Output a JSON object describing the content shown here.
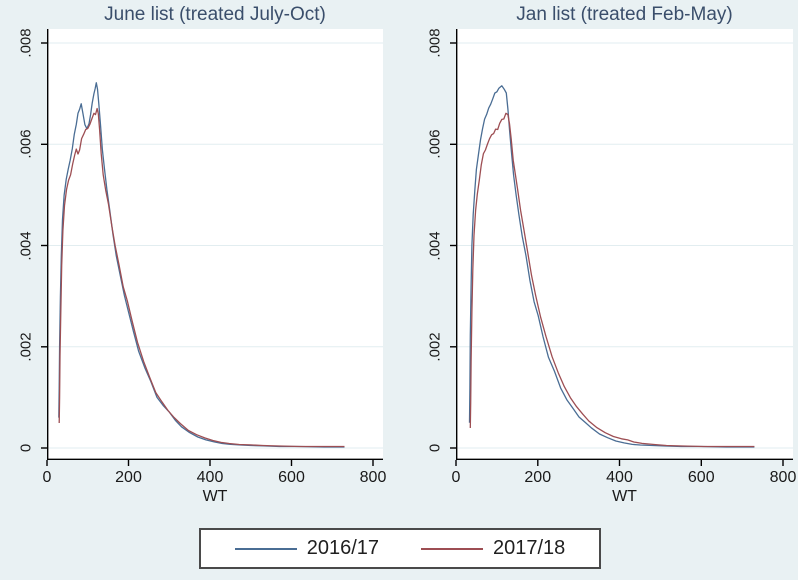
{
  "figure": {
    "background_color": "#e9f1f3",
    "plot_background_color": "#ffffff",
    "gridline_color": "#e2edf0",
    "axis_color": "#000000",
    "title_color": "#3a4e6b",
    "tick_text_color": "#1a1a1a"
  },
  "legend": {
    "entries": [
      {
        "label": "2016/17",
        "color": "#4a6d94"
      },
      {
        "label": "2017/18",
        "color": "#9d4e53"
      }
    ]
  },
  "chart_data": [
    {
      "type": "line",
      "title": "June list (treated July-Oct)",
      "xlabel": "WT",
      "ylabel": "",
      "xlim": [
        0,
        800
      ],
      "ylim": [
        0,
        0.008
      ],
      "xticks": [
        0,
        200,
        400,
        600,
        800
      ],
      "xtick_labels": [
        "0",
        "200",
        "400",
        "600",
        "800"
      ],
      "yticks": [
        0,
        0.002,
        0.004,
        0.006,
        0.008
      ],
      "ytick_labels": [
        "0",
        ".002",
        ".004",
        ".006",
        ".008"
      ],
      "grid": "horizontal",
      "legend_position": "bottom-outside",
      "series": [
        {
          "name": "2016/17",
          "color": "#4a6d94",
          "points": [
            [
              29,
              0.0006
            ],
            [
              30,
              0.0012
            ],
            [
              31,
              0.002
            ],
            [
              33,
              0.003
            ],
            [
              35,
              0.0038
            ],
            [
              38,
              0.0045
            ],
            [
              42,
              0.005
            ],
            [
              47,
              0.0053
            ],
            [
              52,
              0.0055
            ],
            [
              57,
              0.0057
            ],
            [
              62,
              0.0059
            ],
            [
              67,
              0.0062
            ],
            [
              72,
              0.0064
            ],
            [
              76,
              0.0066
            ],
            [
              80,
              0.0067
            ],
            [
              84,
              0.0068
            ],
            [
              88,
              0.0066
            ],
            [
              93,
              0.0064
            ],
            [
              98,
              0.0063
            ],
            [
              103,
              0.0064
            ],
            [
              107,
              0.0066
            ],
            [
              111,
              0.0068
            ],
            [
              115,
              0.007
            ],
            [
              118,
              0.0071
            ],
            [
              121,
              0.0072
            ],
            [
              124,
              0.0071
            ],
            [
              127,
              0.0068
            ],
            [
              131,
              0.0064
            ],
            [
              136,
              0.0059
            ],
            [
              141,
              0.0055
            ],
            [
              147,
              0.0051
            ],
            [
              154,
              0.0047
            ],
            [
              162,
              0.0042
            ],
            [
              170,
              0.0038
            ],
            [
              180,
              0.0034
            ],
            [
              190,
              0.003
            ],
            [
              200,
              0.0027
            ],
            [
              212,
              0.0023
            ],
            [
              225,
              0.0019
            ],
            [
              240,
              0.0016
            ],
            [
              255,
              0.0013
            ],
            [
              270,
              0.001
            ],
            [
              285,
              0.00085
            ],
            [
              300,
              0.0007
            ],
            [
              315,
              0.00055
            ],
            [
              330,
              0.00042
            ],
            [
              350,
              0.0003
            ],
            [
              370,
              0.00022
            ],
            [
              390,
              0.00016
            ],
            [
              410,
              0.00012
            ],
            [
              430,
              9e-05
            ],
            [
              450,
              7e-05
            ],
            [
              475,
              6e-05
            ],
            [
              500,
              5e-05
            ],
            [
              530,
              4e-05
            ],
            [
              570,
              3e-05
            ],
            [
              620,
              3e-05
            ],
            [
              680,
              2e-05
            ],
            [
              730,
              2e-05
            ]
          ]
        },
        {
          "name": "2017/18",
          "color": "#9d4e53",
          "points": [
            [
              30,
              0.0005
            ],
            [
              31,
              0.001
            ],
            [
              32,
              0.0018
            ],
            [
              34,
              0.0028
            ],
            [
              36,
              0.0036
            ],
            [
              39,
              0.0043
            ],
            [
              43,
              0.0048
            ],
            [
              48,
              0.0051
            ],
            [
              53,
              0.0053
            ],
            [
              58,
              0.0054
            ],
            [
              63,
              0.0056
            ],
            [
              68,
              0.0058
            ],
            [
              72,
              0.0059
            ],
            [
              76,
              0.0058
            ],
            [
              80,
              0.0059
            ],
            [
              85,
              0.0061
            ],
            [
              90,
              0.0062
            ],
            [
              95,
              0.0063
            ],
            [
              100,
              0.0063
            ],
            [
              105,
              0.0064
            ],
            [
              110,
              0.0065
            ],
            [
              115,
              0.0066
            ],
            [
              119,
              0.0066
            ],
            [
              123,
              0.0067
            ],
            [
              126,
              0.0066
            ],
            [
              129,
              0.0063
            ],
            [
              133,
              0.0058
            ],
            [
              138,
              0.0054
            ],
            [
              144,
              0.0051
            ],
            [
              151,
              0.0048
            ],
            [
              159,
              0.0044
            ],
            [
              167,
              0.004
            ],
            [
              177,
              0.0036
            ],
            [
              187,
              0.0032
            ],
            [
              197,
              0.0029
            ],
            [
              209,
              0.0025
            ],
            [
              222,
              0.0021
            ],
            [
              237,
              0.0017
            ],
            [
              252,
              0.0014
            ],
            [
              267,
              0.0011
            ],
            [
              282,
              0.0009
            ],
            [
              297,
              0.00075
            ],
            [
              312,
              0.0006
            ],
            [
              327,
              0.00048
            ],
            [
              347,
              0.00035
            ],
            [
              367,
              0.00026
            ],
            [
              387,
              0.0002
            ],
            [
              407,
              0.00015
            ],
            [
              427,
              0.00011
            ],
            [
              447,
              9e-05
            ],
            [
              472,
              7e-05
            ],
            [
              500,
              6e-05
            ],
            [
              530,
              5e-05
            ],
            [
              570,
              4e-05
            ],
            [
              620,
              3e-05
            ],
            [
              680,
              3e-05
            ],
            [
              730,
              3e-05
            ]
          ]
        }
      ]
    },
    {
      "type": "line",
      "title": "Jan list (treated Feb-May)",
      "xlabel": "WT",
      "ylabel": "",
      "xlim": [
        0,
        800
      ],
      "ylim": [
        0,
        0.008
      ],
      "xticks": [
        0,
        200,
        400,
        600,
        800
      ],
      "xtick_labels": [
        "0",
        "200",
        "400",
        "600",
        "800"
      ],
      "yticks": [
        0,
        0.002,
        0.004,
        0.006,
        0.008
      ],
      "ytick_labels": [
        "0",
        ".002",
        ".004",
        ".006",
        ".008"
      ],
      "grid": "horizontal",
      "legend_position": "bottom-outside",
      "series": [
        {
          "name": "2016/17",
          "color": "#4a6d94",
          "points": [
            [
              33,
              0.0005
            ],
            [
              34,
              0.0012
            ],
            [
              35,
              0.0022
            ],
            [
              37,
              0.0032
            ],
            [
              39,
              0.004
            ],
            [
              42,
              0.0046
            ],
            [
              46,
              0.0051
            ],
            [
              50,
              0.0055
            ],
            [
              55,
              0.0058
            ],
            [
              60,
              0.0061
            ],
            [
              65,
              0.0063
            ],
            [
              70,
              0.0065
            ],
            [
              75,
              0.0066
            ],
            [
              80,
              0.0067
            ],
            [
              85,
              0.0068
            ],
            [
              90,
              0.0069
            ],
            [
              95,
              0.007
            ],
            [
              100,
              0.00705
            ],
            [
              105,
              0.0071
            ],
            [
              112,
              0.00715
            ],
            [
              118,
              0.0071
            ],
            [
              123,
              0.007
            ],
            [
              127,
              0.0067
            ],
            [
              131,
              0.0063
            ],
            [
              136,
              0.0058
            ],
            [
              141,
              0.0054
            ],
            [
              147,
              0.005
            ],
            [
              154,
              0.0046
            ],
            [
              162,
              0.0042
            ],
            [
              171,
              0.0038
            ],
            [
              181,
              0.0033
            ],
            [
              191,
              0.0029
            ],
            [
              201,
              0.0026
            ],
            [
              213,
              0.0022
            ],
            [
              226,
              0.0018
            ],
            [
              241,
              0.0015
            ],
            [
              256,
              0.0012
            ],
            [
              271,
              0.00095
            ],
            [
              286,
              0.00078
            ],
            [
              301,
              0.00062
            ],
            [
              316,
              0.0005
            ],
            [
              331,
              0.0004
            ],
            [
              351,
              0.00028
            ],
            [
              371,
              0.0002
            ],
            [
              391,
              0.00014
            ],
            [
              411,
              0.0001
            ],
            [
              431,
              7e-05
            ],
            [
              451,
              6e-05
            ],
            [
              481,
              5e-05
            ],
            [
              511,
              4e-05
            ],
            [
              551,
              3e-05
            ],
            [
              601,
              3e-05
            ],
            [
              661,
              2e-05
            ],
            [
              730,
              2e-05
            ]
          ]
        },
        {
          "name": "2017/18",
          "color": "#9d4e53",
          "points": [
            [
              35,
              0.0004
            ],
            [
              36,
              0.0009
            ],
            [
              37,
              0.0017
            ],
            [
              39,
              0.0027
            ],
            [
              41,
              0.0035
            ],
            [
              44,
              0.0042
            ],
            [
              48,
              0.0047
            ],
            [
              52,
              0.005
            ],
            [
              57,
              0.0053
            ],
            [
              62,
              0.0056
            ],
            [
              67,
              0.0058
            ],
            [
              72,
              0.0059
            ],
            [
              77,
              0.006
            ],
            [
              82,
              0.0061
            ],
            [
              87,
              0.0062
            ],
            [
              92,
              0.0062
            ],
            [
              97,
              0.0063
            ],
            [
              102,
              0.0063
            ],
            [
              107,
              0.0064
            ],
            [
              112,
              0.0065
            ],
            [
              117,
              0.0065
            ],
            [
              122,
              0.0066
            ],
            [
              127,
              0.0066
            ],
            [
              131,
              0.0064
            ],
            [
              135,
              0.0061
            ],
            [
              140,
              0.0057
            ],
            [
              145,
              0.0054
            ],
            [
              151,
              0.0051
            ],
            [
              158,
              0.0047
            ],
            [
              166,
              0.0043
            ],
            [
              175,
              0.0039
            ],
            [
              185,
              0.0034
            ],
            [
              195,
              0.003
            ],
            [
              207,
              0.0026
            ],
            [
              220,
              0.0022
            ],
            [
              235,
              0.0018
            ],
            [
              250,
              0.0015
            ],
            [
              265,
              0.0012
            ],
            [
              280,
              0.001
            ],
            [
              295,
              0.00082
            ],
            [
              310,
              0.00066
            ],
            [
              325,
              0.00054
            ],
            [
              345,
              0.0004
            ],
            [
              365,
              0.0003
            ],
            [
              385,
              0.00023
            ],
            [
              405,
              0.00018
            ],
            [
              420,
              0.00016
            ],
            [
              435,
              0.00012
            ],
            [
              455,
              9e-05
            ],
            [
              485,
              7e-05
            ],
            [
              515,
              5e-05
            ],
            [
              555,
              4e-05
            ],
            [
              605,
              3e-05
            ],
            [
              665,
              3e-05
            ],
            [
              730,
              3e-05
            ]
          ]
        }
      ]
    }
  ]
}
